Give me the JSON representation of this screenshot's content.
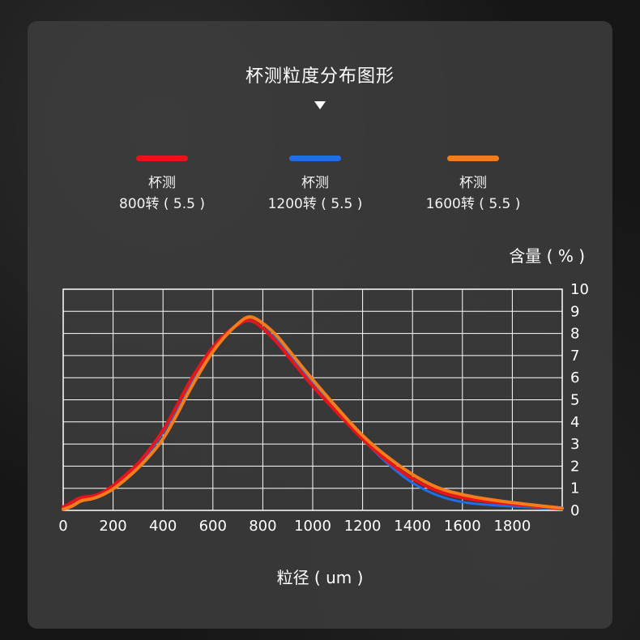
{
  "chart_data": {
    "type": "line",
    "title": "杯测粒度分布图形",
    "xlabel": "粒径 ( um )",
    "ylabel": "含量 ( % )",
    "xlim": [
      0,
      2000
    ],
    "ylim": [
      0,
      10
    ],
    "x_ticks": [
      "0",
      "200",
      "400",
      "600",
      "800",
      "1000",
      "1200",
      "1400",
      "1600",
      "1800"
    ],
    "y_ticks": [
      "0",
      "1",
      "2",
      "3",
      "4",
      "5",
      "6",
      "7",
      "8",
      "9",
      "10"
    ],
    "grid": true,
    "legend_position": "top",
    "series": [
      {
        "name_line1": "杯测",
        "name_line2": "800转 ( 5.5 )",
        "color": "#e8141b",
        "points": [
          [
            0,
            0.15
          ],
          [
            40,
            0.4
          ],
          [
            70,
            0.6
          ],
          [
            110,
            0.62
          ],
          [
            150,
            0.75
          ],
          [
            200,
            1.1
          ],
          [
            250,
            1.6
          ],
          [
            300,
            2.1
          ],
          [
            350,
            2.8
          ],
          [
            400,
            3.6
          ],
          [
            450,
            4.6
          ],
          [
            500,
            5.7
          ],
          [
            550,
            6.6
          ],
          [
            600,
            7.4
          ],
          [
            650,
            8.0
          ],
          [
            700,
            8.4
          ],
          [
            740,
            8.65
          ],
          [
            780,
            8.45
          ],
          [
            850,
            7.7
          ],
          [
            900,
            7.0
          ],
          [
            1000,
            5.6
          ],
          [
            1100,
            4.4
          ],
          [
            1200,
            3.2
          ],
          [
            1300,
            2.2
          ],
          [
            1400,
            1.4
          ],
          [
            1500,
            0.85
          ],
          [
            1600,
            0.55
          ],
          [
            1700,
            0.4
          ],
          [
            1800,
            0.28
          ],
          [
            1900,
            0.18
          ],
          [
            2000,
            0.08
          ]
        ]
      },
      {
        "name_line1": "杯测",
        "name_line2": "1200转 ( 5.5 )",
        "color": "#1f6fe8",
        "points": [
          [
            0,
            0.12
          ],
          [
            40,
            0.35
          ],
          [
            70,
            0.55
          ],
          [
            110,
            0.6
          ],
          [
            150,
            0.72
          ],
          [
            200,
            1.05
          ],
          [
            250,
            1.5
          ],
          [
            300,
            2.0
          ],
          [
            350,
            2.7
          ],
          [
            400,
            3.5
          ],
          [
            450,
            4.5
          ],
          [
            500,
            5.6
          ],
          [
            550,
            6.5
          ],
          [
            600,
            7.35
          ],
          [
            650,
            8.0
          ],
          [
            700,
            8.45
          ],
          [
            740,
            8.6
          ],
          [
            780,
            8.45
          ],
          [
            850,
            7.8
          ],
          [
            900,
            7.1
          ],
          [
            1000,
            5.7
          ],
          [
            1100,
            4.5
          ],
          [
            1200,
            3.2
          ],
          [
            1300,
            2.1
          ],
          [
            1400,
            1.2
          ],
          [
            1500,
            0.65
          ],
          [
            1600,
            0.35
          ],
          [
            1700,
            0.25
          ],
          [
            1800,
            0.18
          ],
          [
            1900,
            0.12
          ],
          [
            2000,
            0.05
          ]
        ]
      },
      {
        "name_line1": "杯测",
        "name_line2": "1600转 ( 5.5 )",
        "color": "#f57c1a",
        "points": [
          [
            0,
            0.05
          ],
          [
            40,
            0.2
          ],
          [
            70,
            0.45
          ],
          [
            110,
            0.5
          ],
          [
            150,
            0.65
          ],
          [
            200,
            0.95
          ],
          [
            250,
            1.4
          ],
          [
            300,
            1.9
          ],
          [
            350,
            2.5
          ],
          [
            400,
            3.2
          ],
          [
            450,
            4.2
          ],
          [
            500,
            5.3
          ],
          [
            550,
            6.3
          ],
          [
            600,
            7.2
          ],
          [
            650,
            7.9
          ],
          [
            700,
            8.45
          ],
          [
            740,
            8.8
          ],
          [
            780,
            8.65
          ],
          [
            850,
            8.0
          ],
          [
            900,
            7.3
          ],
          [
            1000,
            5.9
          ],
          [
            1100,
            4.6
          ],
          [
            1200,
            3.35
          ],
          [
            1300,
            2.4
          ],
          [
            1400,
            1.6
          ],
          [
            1500,
            1.0
          ],
          [
            1600,
            0.7
          ],
          [
            1700,
            0.5
          ],
          [
            1800,
            0.35
          ],
          [
            1900,
            0.22
          ],
          [
            2000,
            0.1
          ]
        ]
      }
    ]
  }
}
